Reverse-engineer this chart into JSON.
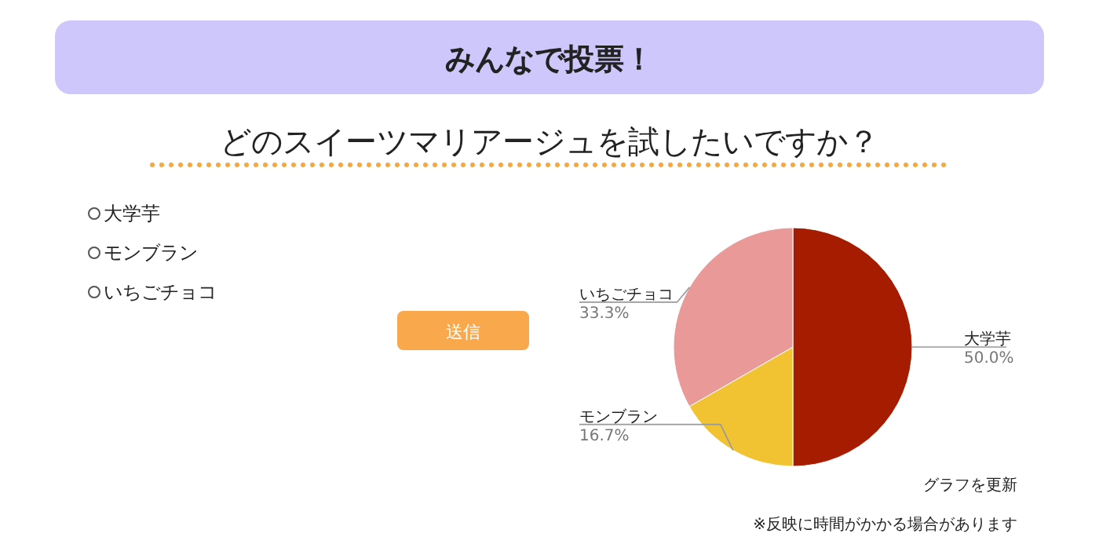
{
  "chart_data": {
    "type": "pie",
    "title": "みんなで投票！",
    "subtitle": "どのスイーツマリアージュを試したいですか？",
    "categories": [
      "大学芋",
      "モンブラン",
      "いちごチョコ"
    ],
    "values": [
      50,
      16.7,
      33.3
    ],
    "colors": [
      "#a51c00",
      "#f1c232",
      "#ea9999"
    ],
    "value_labels": [
      "50.0%",
      "16.7%",
      "33.3%"
    ],
    "annotations": [
      "送信",
      "グラフを更新",
      "※反映に時間がかかる場合があります"
    ]
  }
}
